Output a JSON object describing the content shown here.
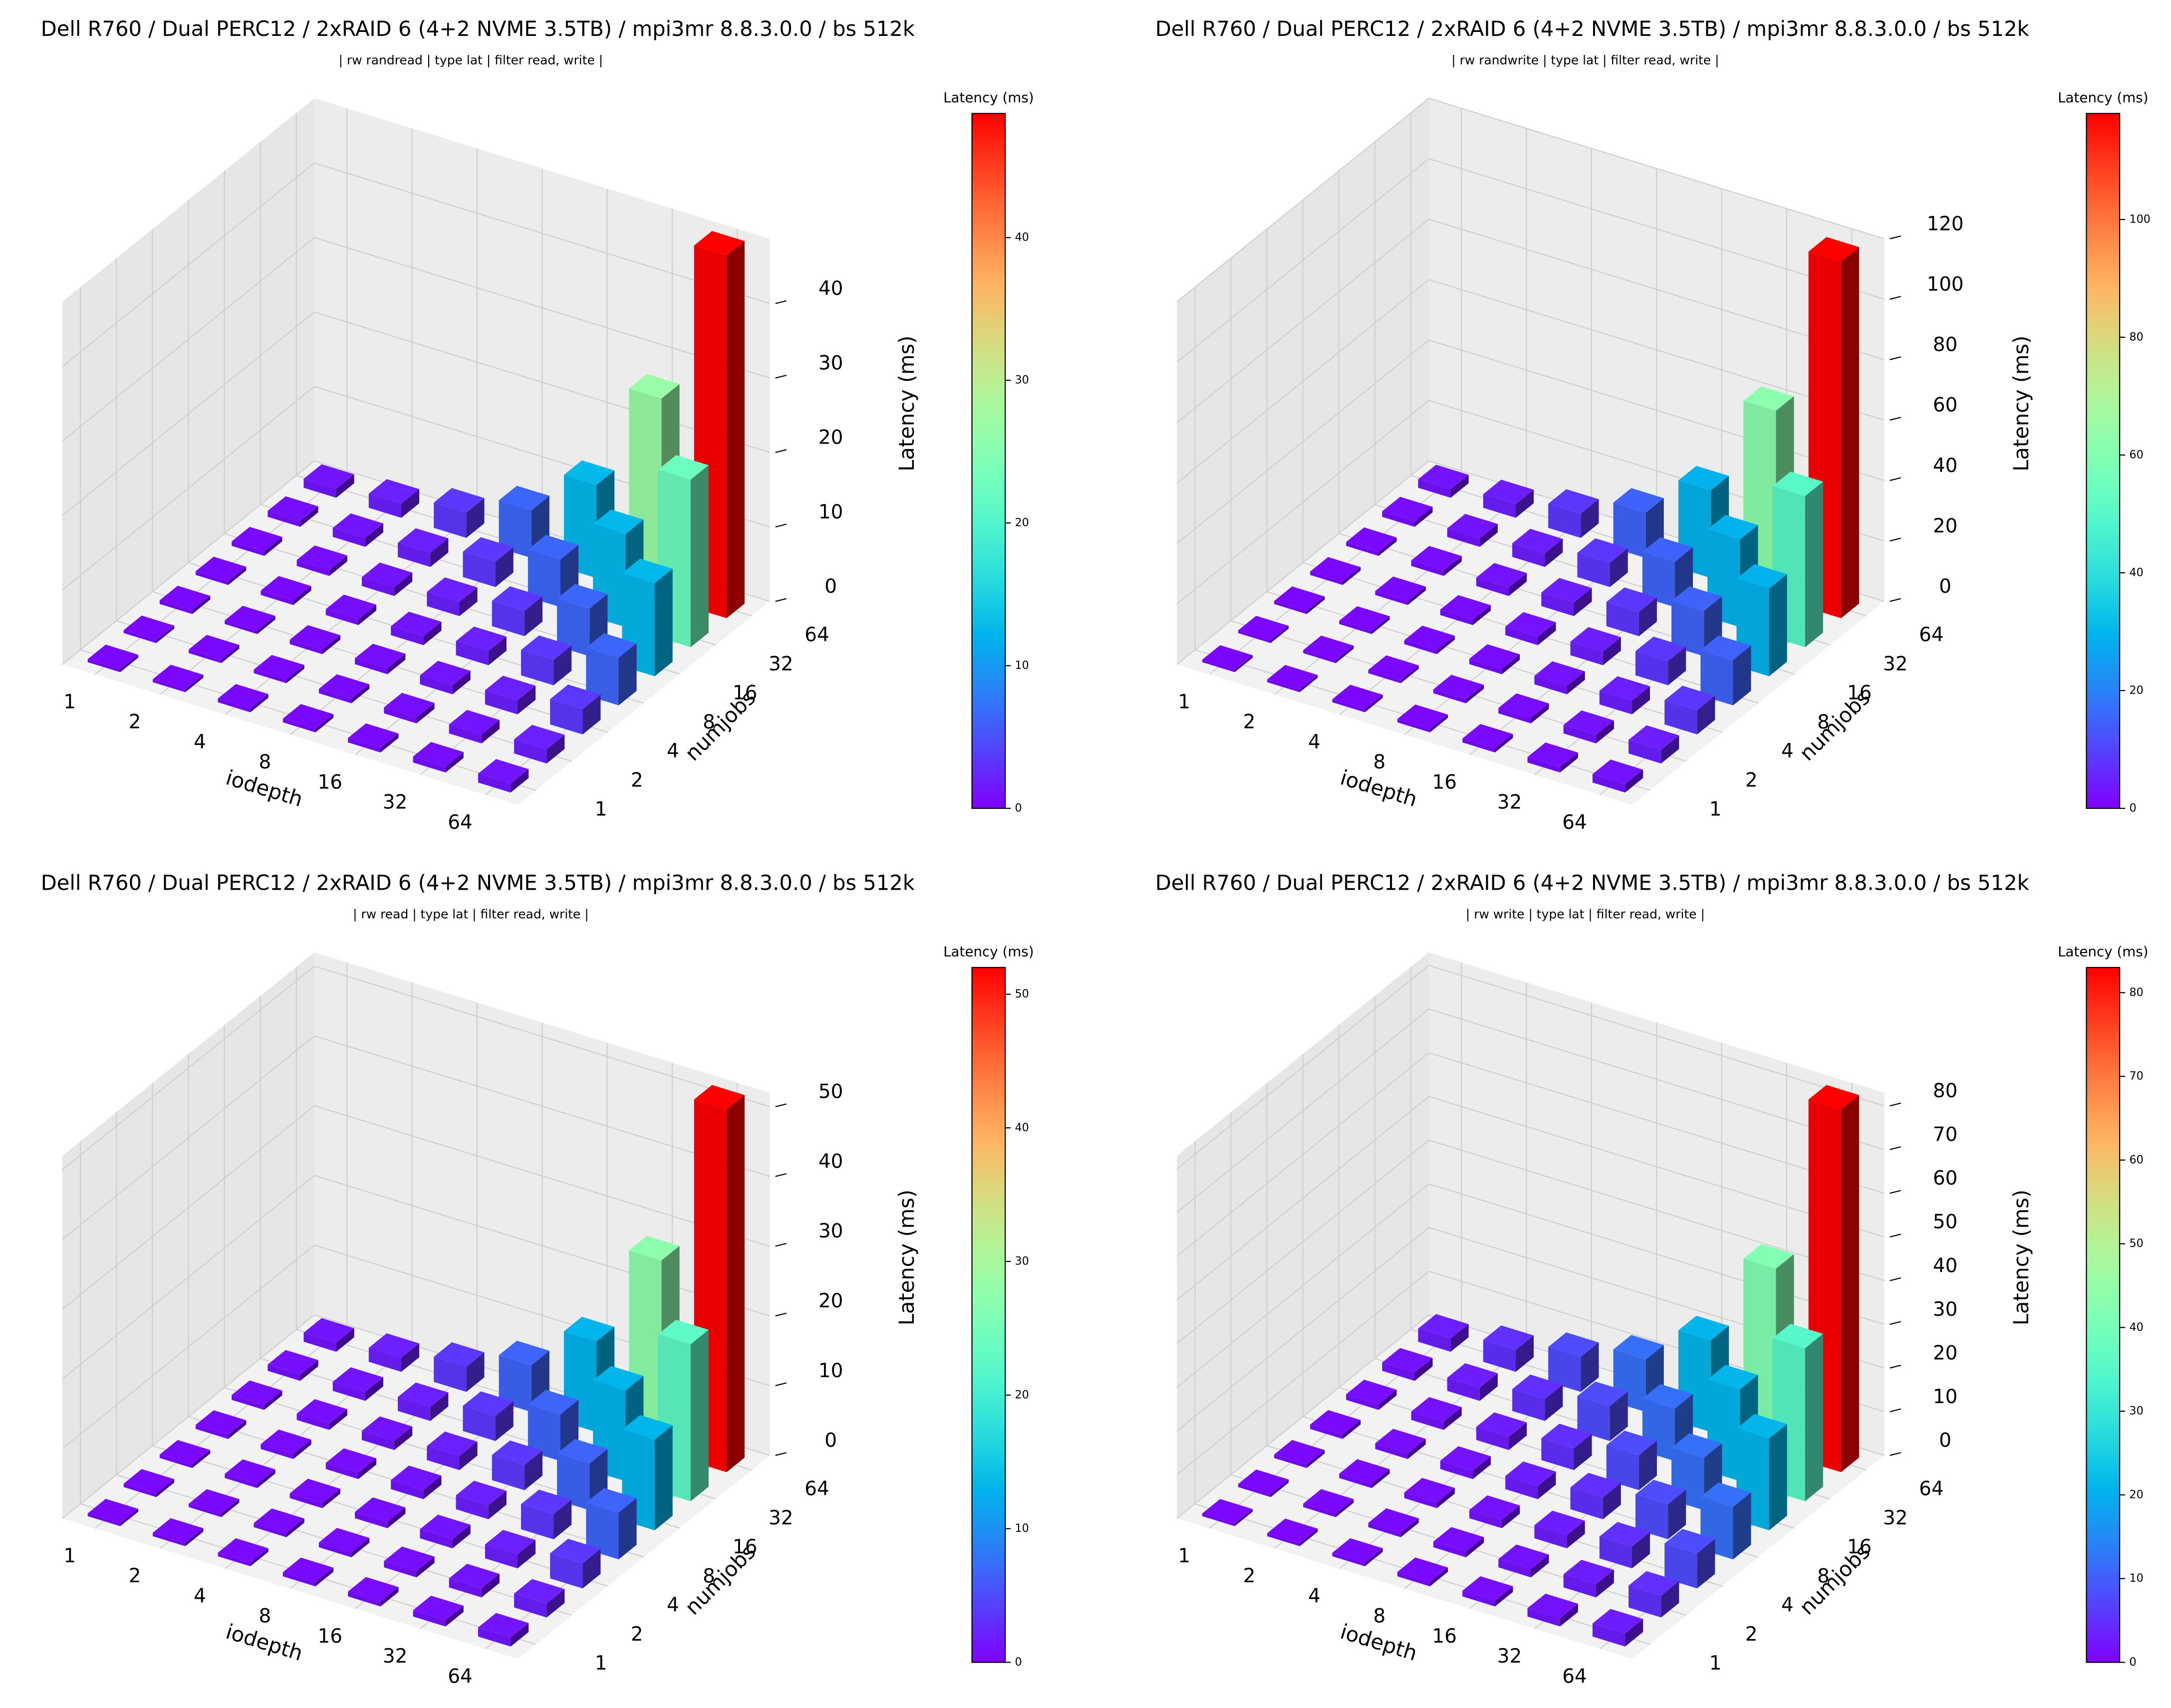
{
  "chart_data": [
    {
      "type": "bar3d",
      "title": "Dell R760 / Dual PERC12 / 2xRAID 6 (4+2 NVME 3.5TB) / mpi3mr 8.8.3.0.0 / bs 512k",
      "subtitle": "| rw randread | type lat | filter read, write |",
      "x_label": "iodepth",
      "y_label": "numjobs",
      "z_label": "Latency (ms)",
      "x_categories": [
        "1",
        "2",
        "4",
        "8",
        "16",
        "32",
        "64"
      ],
      "y_categories": [
        "1",
        "2",
        "4",
        "8",
        "16",
        "32",
        "64"
      ],
      "values": [
        [
          0.4,
          0.4,
          0.5,
          0.5,
          0.6,
          0.8,
          1.2
        ],
        [
          0.4,
          0.5,
          0.5,
          0.6,
          0.8,
          1.2,
          1.9
        ],
        [
          0.5,
          0.5,
          0.6,
          0.8,
          1.2,
          1.9,
          3.4
        ],
        [
          0.5,
          0.6,
          0.8,
          1.2,
          1.9,
          3.4,
          6.4
        ],
        [
          0.6,
          0.8,
          1.2,
          1.9,
          3.4,
          6.4,
          12.5
        ],
        [
          0.8,
          1.2,
          1.9,
          3.4,
          6.4,
          12.5,
          22.5
        ],
        [
          1.2,
          1.9,
          3.4,
          6.4,
          12.5,
          26.8,
          48.7
        ]
      ],
      "zlim": [
        0,
        48.7
      ],
      "zticks": [
        0,
        10,
        20,
        30,
        40
      ],
      "colormap": "rainbow",
      "colorbar_label": "Latency (ms)",
      "clim": [
        0,
        48.7
      ],
      "cticks": [
        0,
        10,
        20,
        30,
        40
      ],
      "grid": true
    },
    {
      "type": "bar3d",
      "title": "Dell R760 / Dual PERC12 / 2xRAID 6 (4+2 NVME 3.5TB) / mpi3mr 8.8.3.0.0 / bs 512k",
      "subtitle": "| rw randwrite | type lat | filter read, write |",
      "x_label": "iodepth",
      "y_label": "numjobs",
      "z_label": "Latency (ms)",
      "x_categories": [
        "1",
        "2",
        "4",
        "8",
        "16",
        "32",
        "64"
      ],
      "y_categories": [
        "1",
        "2",
        "4",
        "8",
        "16",
        "32",
        "64"
      ],
      "values": [
        [
          0.8,
          0.9,
          1,
          1.1,
          1.3,
          1.8,
          2.8
        ],
        [
          0.9,
          1,
          1.1,
          1.3,
          1.8,
          2.8,
          4.5
        ],
        [
          1,
          1.1,
          1.3,
          1.8,
          2.8,
          4.5,
          8
        ],
        [
          1.1,
          1.3,
          1.8,
          2.8,
          4.5,
          8,
          15
        ],
        [
          1.3,
          1.8,
          2.8,
          4.5,
          8,
          15,
          29
        ],
        [
          1.8,
          2.8,
          4.5,
          8,
          15,
          29,
          50
        ],
        [
          2.8,
          4.5,
          8,
          15,
          29,
          62,
          118
        ]
      ],
      "zlim": [
        0,
        120
      ],
      "zticks": [
        0,
        20,
        40,
        60,
        80,
        100,
        120
      ],
      "colormap": "rainbow",
      "colorbar_label": "Latency (ms)",
      "clim": [
        0,
        118
      ],
      "cticks": [
        0,
        20,
        40,
        60,
        80,
        100
      ],
      "grid": true
    },
    {
      "type": "bar3d",
      "title": "Dell R760 / Dual PERC12 / 2xRAID 6 (4+2 NVME 3.5TB) / mpi3mr 8.8.3.0.0 / bs 512k",
      "subtitle": "| rw read | type lat | filter read, write |",
      "x_label": "iodepth",
      "y_label": "numjobs",
      "z_label": "Latency (ms)",
      "x_categories": [
        "1",
        "2",
        "4",
        "8",
        "16",
        "32",
        "64"
      ],
      "y_categories": [
        "1",
        "2",
        "4",
        "8",
        "16",
        "32",
        "64"
      ],
      "values": [
        [
          0.4,
          0.5,
          0.5,
          0.6,
          0.7,
          0.9,
          1.3
        ],
        [
          0.5,
          0.5,
          0.6,
          0.7,
          0.9,
          1.3,
          2
        ],
        [
          0.5,
          0.6,
          0.7,
          0.9,
          1.3,
          2,
          3.6
        ],
        [
          0.6,
          0.7,
          0.9,
          1.3,
          2,
          3.6,
          6.7
        ],
        [
          0.7,
          0.9,
          1.3,
          2,
          3.6,
          6.7,
          13
        ],
        [
          0.9,
          1.3,
          2,
          3.6,
          6.7,
          13,
          22.5
        ],
        [
          1.3,
          2,
          3.6,
          6.7,
          13,
          27.5,
          52
        ]
      ],
      "zlim": [
        0,
        52
      ],
      "zticks": [
        0,
        10,
        20,
        30,
        40,
        50
      ],
      "colormap": "rainbow",
      "colorbar_label": "Latency (ms)",
      "clim": [
        0,
        52
      ],
      "cticks": [
        0,
        10,
        20,
        30,
        40,
        50
      ],
      "grid": true
    },
    {
      "type": "bar3d",
      "title": "Dell R760 / Dual PERC12 / 2xRAID 6 (4+2 NVME 3.5TB) / mpi3mr 8.8.3.0.0 / bs 512k",
      "subtitle": "| rw write | type lat | filter read, write |",
      "x_label": "iodepth",
      "y_label": "numjobs",
      "z_label": "Latency (ms)",
      "x_categories": [
        "1",
        "2",
        "4",
        "8",
        "16",
        "32",
        "64"
      ],
      "y_categories": [
        "1",
        "2",
        "4",
        "8",
        "16",
        "32",
        "64"
      ],
      "values": [
        [
          0.6,
          0.7,
          0.8,
          1,
          1.3,
          1.9,
          3
        ],
        [
          0.7,
          0.8,
          1,
          1.3,
          1.9,
          3,
          5
        ],
        [
          0.8,
          1,
          1.3,
          1.9,
          3,
          5,
          8
        ],
        [
          1,
          1.3,
          1.9,
          3,
          5,
          8,
          12
        ],
        [
          1.3,
          1.9,
          3,
          5,
          8,
          12,
          21
        ],
        [
          1.9,
          3,
          5,
          8,
          12,
          21,
          35
        ],
        [
          3,
          5,
          8,
          12,
          21,
          42,
          83
        ]
      ],
      "zlim": [
        0,
        83
      ],
      "zticks": [
        0,
        10,
        20,
        30,
        40,
        50,
        60,
        70,
        80
      ],
      "colormap": "rainbow",
      "colorbar_label": "Latency (ms)",
      "clim": [
        0,
        83
      ],
      "cticks": [
        0,
        10,
        20,
        30,
        40,
        50,
        60,
        70,
        80
      ],
      "grid": true
    }
  ]
}
